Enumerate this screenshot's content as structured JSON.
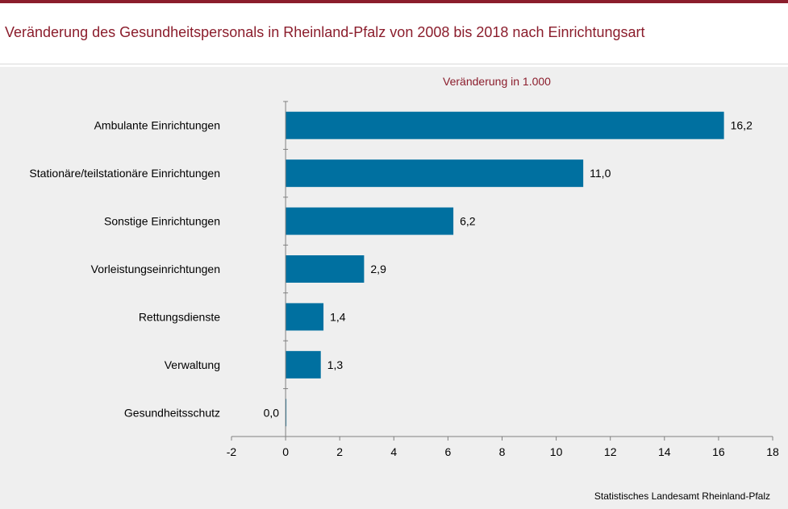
{
  "title": "Veränderung des Gesundheitspersonals in Rheinland-Pfalz von 2008 bis 2018 nach Einrichtungsart",
  "source": "Statistisches Landesamt Rheinland-Pfalz",
  "colors": {
    "accent": "#8b1d2c",
    "bar": "#0070a0",
    "panel": "#efefef"
  },
  "chart_data": {
    "type": "bar",
    "orientation": "horizontal",
    "subtitle": "Veränderung  in 1.000",
    "categories": [
      "Ambulante Einrichtungen",
      "Stationäre/teilstationäre Einrichtungen",
      "Sonstige Einrichtungen",
      "Vorleistungseinrichtungen",
      "Rettungsdienste",
      "Verwaltung",
      "Gesundheitsschutz"
    ],
    "values": [
      16.2,
      11.0,
      6.2,
      2.9,
      1.4,
      1.3,
      0.0
    ],
    "value_labels": [
      "16,2",
      "11,0",
      "6,2",
      "2,9",
      "1,4",
      "1,3",
      "0,0"
    ],
    "xlim": [
      -2,
      18
    ],
    "xticks": [
      -2,
      0,
      2,
      4,
      6,
      8,
      10,
      12,
      14,
      16,
      18
    ],
    "xtick_labels": [
      "-2",
      "0",
      "2",
      "4",
      "6",
      "8",
      "10",
      "12",
      "14",
      "16",
      "18"
    ],
    "grid": false,
    "legend": "none"
  }
}
